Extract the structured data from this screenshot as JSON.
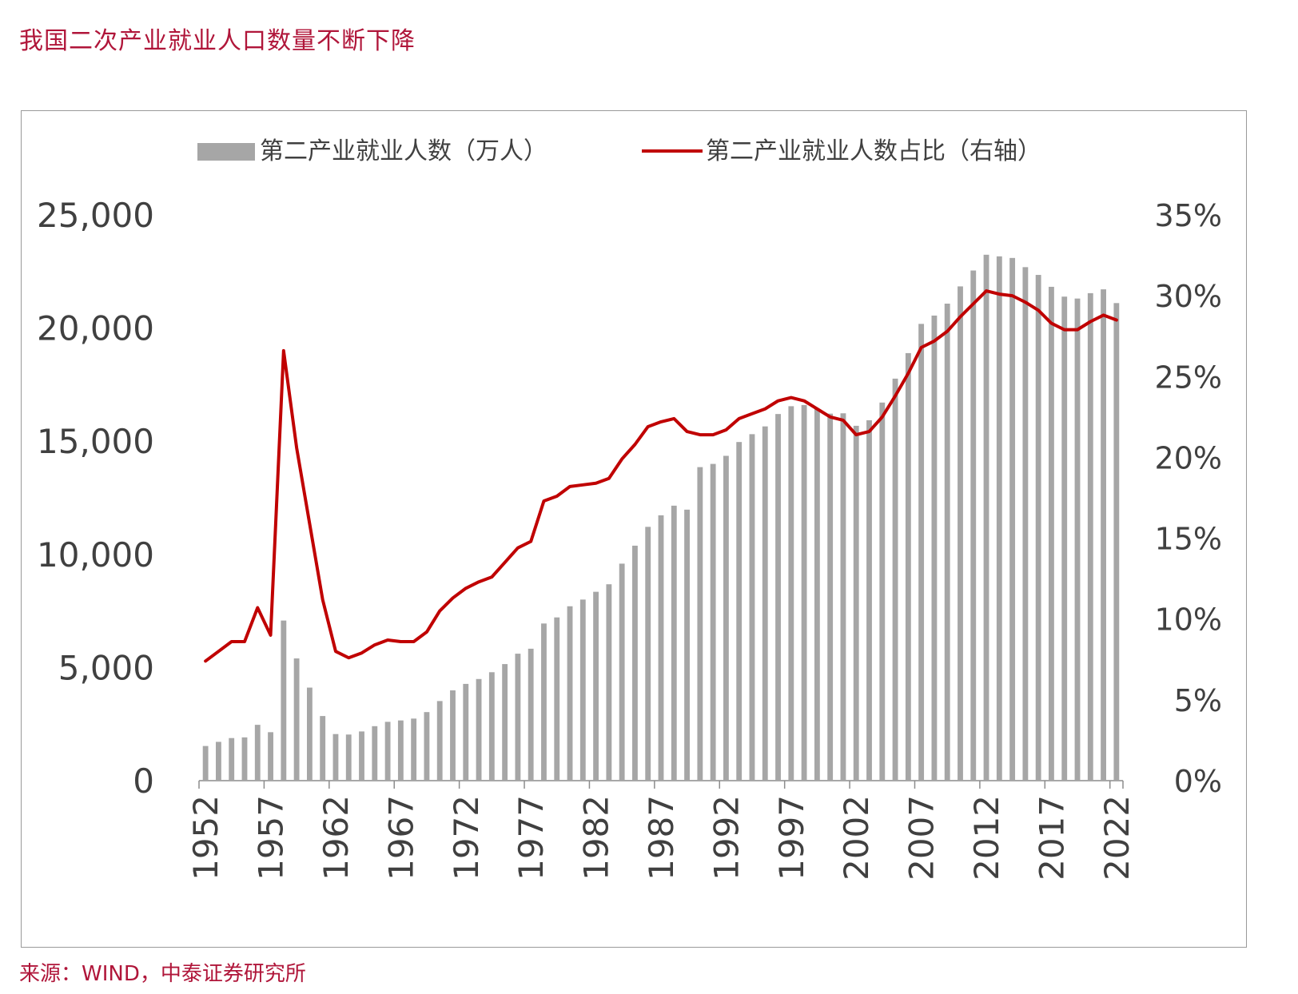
{
  "title": "我国二次产业就业人口数量不断下降",
  "source": "来源：WIND，中泰证券研究所",
  "colors": {
    "bar": "#a6a6a6",
    "line": "#c00000",
    "title": "#b0163a",
    "text": "#404040"
  },
  "chart_data": {
    "type": "bar+line",
    "title": "我国二次产业就业人口数量不断下降",
    "legend": [
      "第二产业就业人数（万人）",
      "第二产业就业人数占比（右轴）"
    ],
    "legend_position": "top",
    "x": [
      1952,
      1953,
      1954,
      1955,
      1956,
      1957,
      1958,
      1959,
      1960,
      1961,
      1962,
      1963,
      1964,
      1965,
      1966,
      1967,
      1968,
      1969,
      1970,
      1971,
      1972,
      1973,
      1974,
      1975,
      1976,
      1977,
      1978,
      1979,
      1980,
      1981,
      1982,
      1983,
      1984,
      1985,
      1986,
      1987,
      1988,
      1989,
      1990,
      1991,
      1992,
      1993,
      1994,
      1995,
      1996,
      1997,
      1998,
      1999,
      2000,
      2001,
      2002,
      2003,
      2004,
      2005,
      2006,
      2007,
      2008,
      2009,
      2010,
      2011,
      2012,
      2013,
      2014,
      2015,
      2016,
      2017,
      2018,
      2019,
      2020,
      2021,
      2022
    ],
    "x_tick_labels": [
      "1952",
      "1957",
      "1962",
      "1967",
      "1972",
      "1977",
      "1982",
      "1987",
      "1992",
      "1997",
      "2002",
      "2007",
      "2012",
      "2017",
      "2022"
    ],
    "series": [
      {
        "name": "第二产业就业人数（万人）",
        "type": "bar",
        "axis": "left",
        "values": [
          1531,
          1715,
          1882,
          1913,
          2468,
          2142,
          7076,
          5402,
          4112,
          2856,
          2059,
          2038,
          2175,
          2408,
          2600,
          2661,
          2743,
          3030,
          3518,
          3990,
          4276,
          4492,
          4792,
          5152,
          5611,
          5831,
          6945,
          7214,
          7707,
          8003,
          8346,
          8679,
          9590,
          10384,
          11216,
          11726,
          12152,
          11976,
          13856,
          13998,
          14355,
          14965,
          15312,
          15655,
          16203,
          16547,
          16600,
          16421,
          16219,
          16234,
          15682,
          15927,
          16709,
          17766,
          18894,
          20186,
          20553,
          21080,
          21842,
          22544,
          23241,
          23170,
          23099,
          22693,
          22350,
          21824,
          21390,
          21305,
          21543,
          21712,
          21105
        ]
      },
      {
        "name": "第二产业就业人数占比（右轴）",
        "type": "line",
        "axis": "right",
        "values": [
          7.4,
          8.0,
          8.6,
          8.6,
          10.7,
          9.0,
          26.6,
          20.6,
          15.9,
          11.2,
          8.0,
          7.6,
          7.9,
          8.4,
          8.7,
          8.6,
          8.6,
          9.2,
          10.5,
          11.3,
          11.9,
          12.3,
          12.6,
          13.5,
          14.4,
          14.8,
          17.3,
          17.6,
          18.2,
          18.3,
          18.4,
          18.7,
          19.9,
          20.8,
          21.9,
          22.2,
          22.4,
          21.6,
          21.4,
          21.4,
          21.7,
          22.4,
          22.7,
          23.0,
          23.5,
          23.7,
          23.5,
          23.0,
          22.5,
          22.3,
          21.4,
          21.6,
          22.5,
          23.8,
          25.2,
          26.8,
          27.2,
          27.8,
          28.7,
          29.5,
          30.3,
          30.1,
          30.0,
          29.6,
          29.1,
          28.3,
          27.9,
          27.9,
          28.4,
          28.8,
          28.5
        ]
      }
    ],
    "left_axis": {
      "min": 0,
      "max": 25000,
      "ticks": [
        "0",
        "5,000",
        "10,000",
        "15,000",
        "20,000",
        "25,000"
      ]
    },
    "right_axis": {
      "min": 0,
      "max": 35,
      "ticks": [
        "0%",
        "5%",
        "10%",
        "15%",
        "20%",
        "25%",
        "30%",
        "35%"
      ]
    }
  }
}
